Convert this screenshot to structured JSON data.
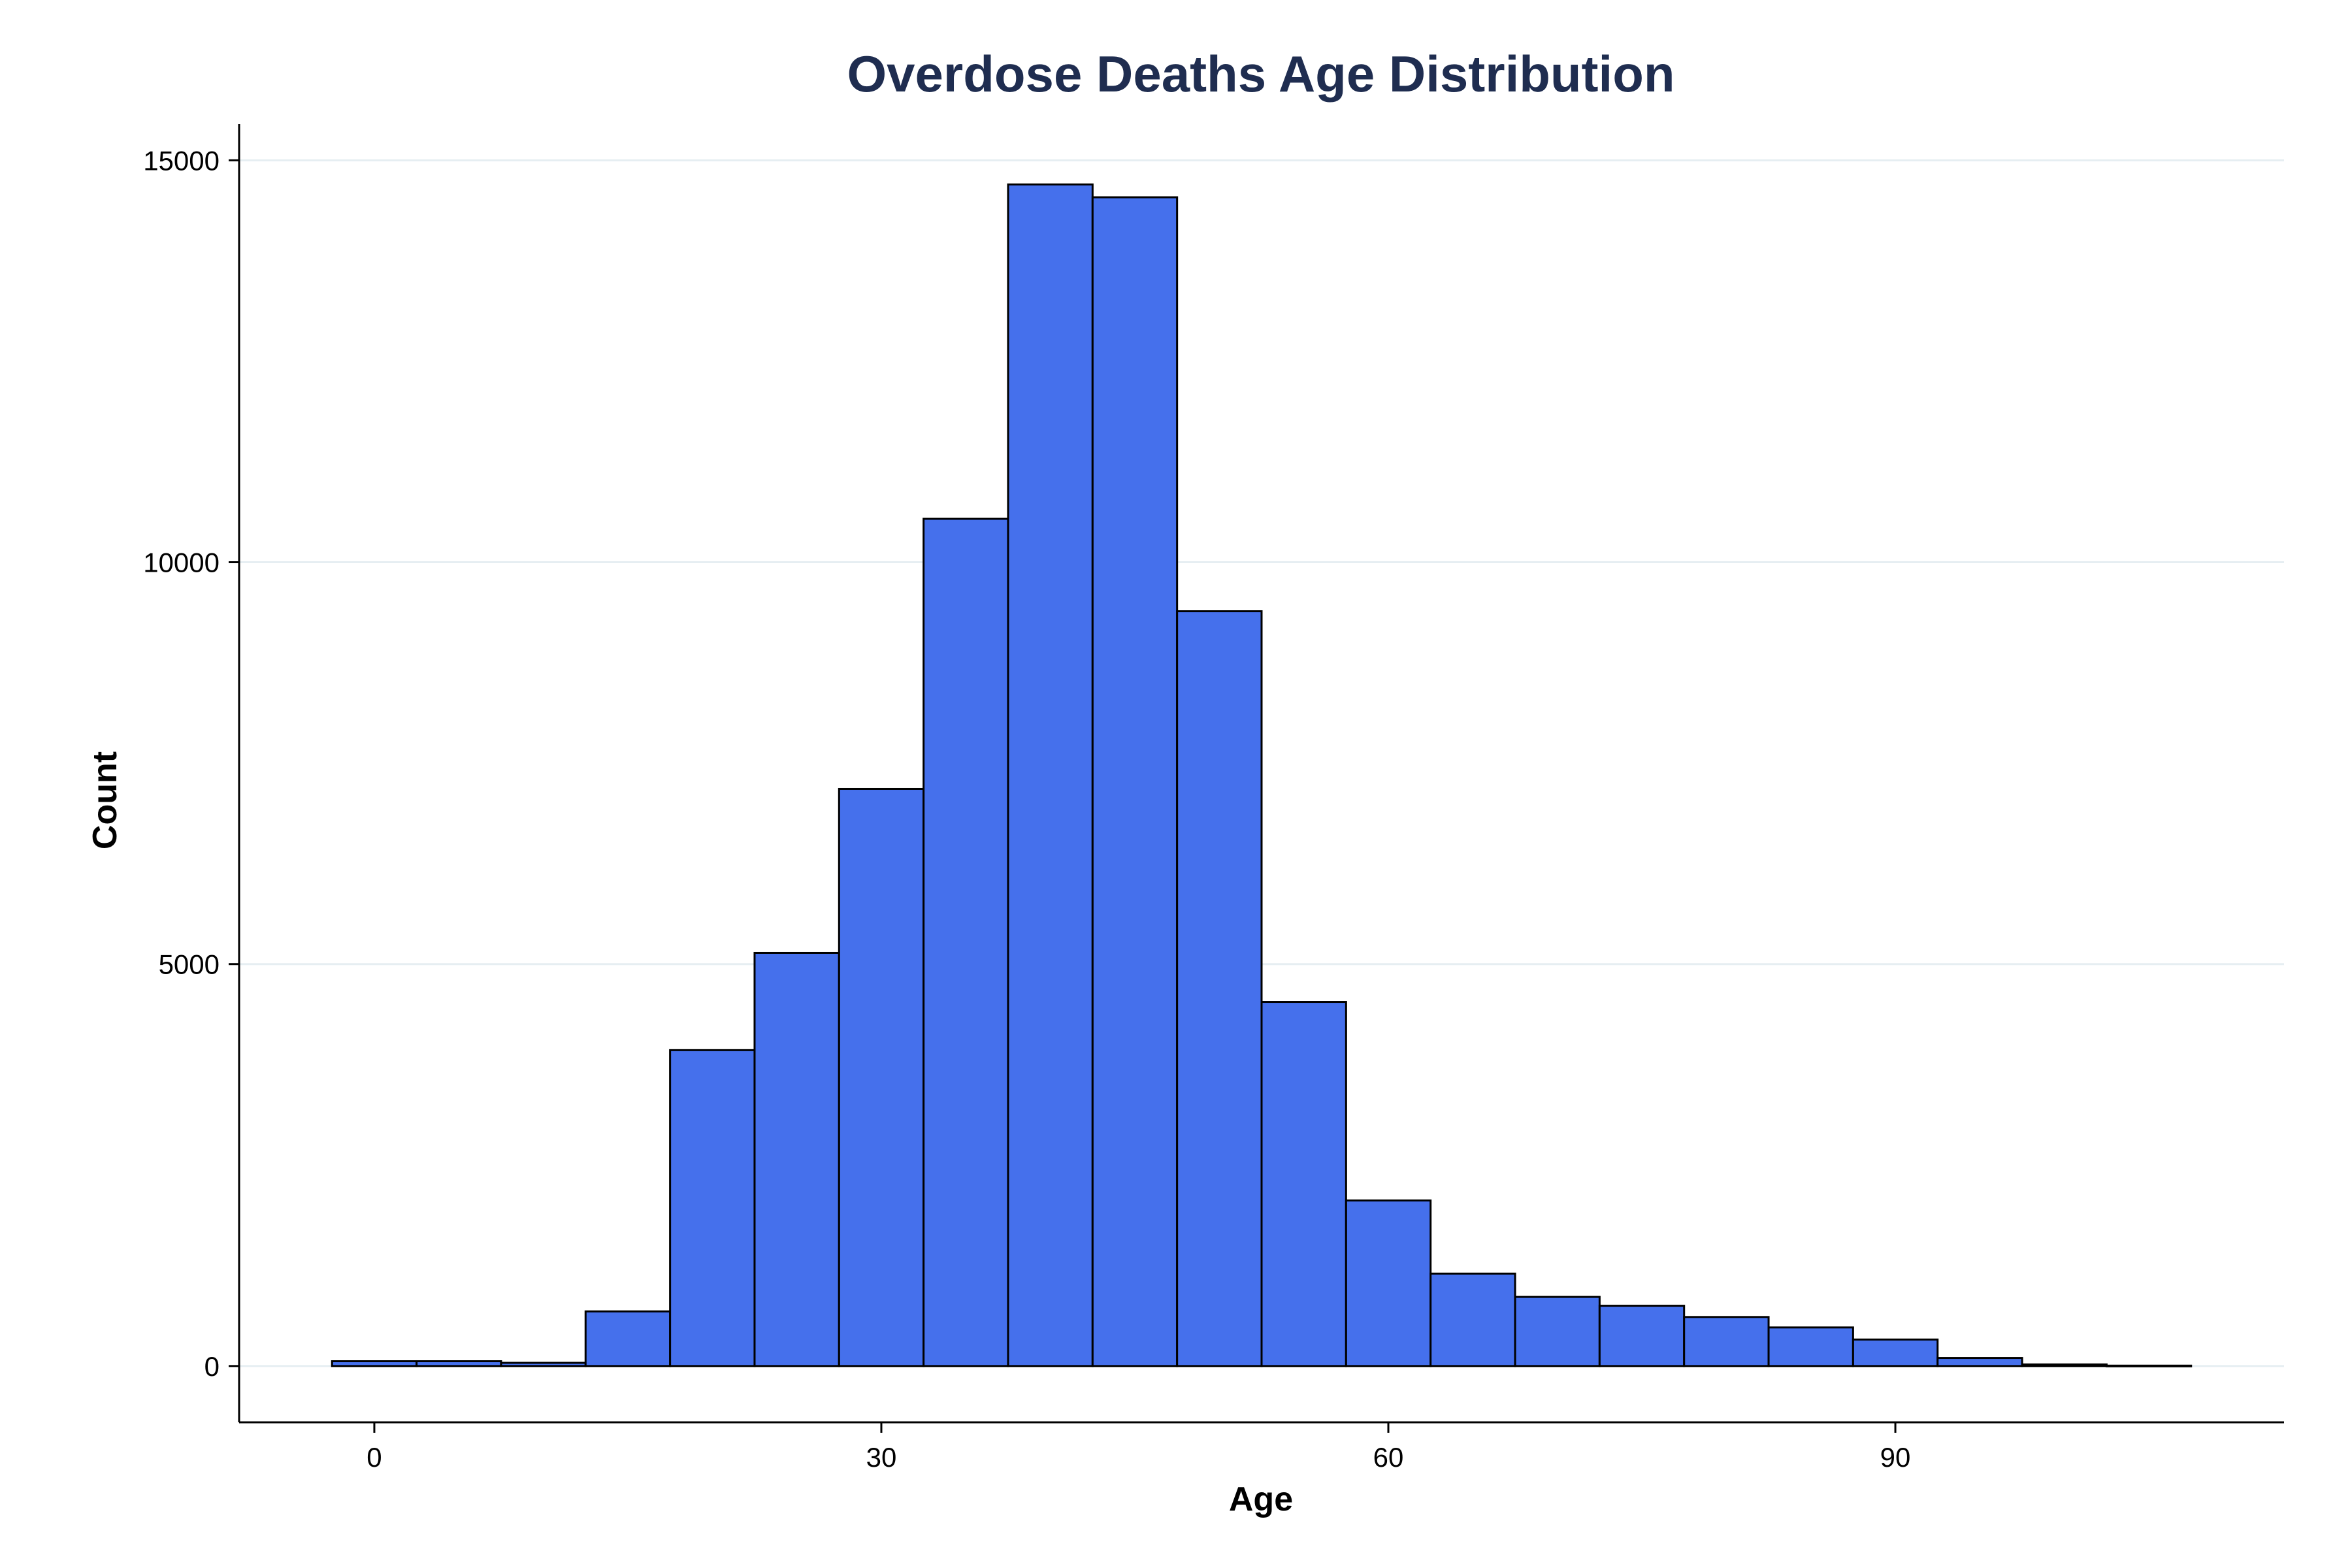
{
  "chart_data": {
    "type": "bar",
    "title": "Overdose Deaths Age Distribution",
    "xlabel": "Age",
    "ylabel": "Count",
    "bin_width": 5,
    "bins": [
      {
        "start": -2.5,
        "end": 2.5,
        "count": 60
      },
      {
        "start": 2.5,
        "end": 7.5,
        "count": 60
      },
      {
        "start": 7.5,
        "end": 12.5,
        "count": 40
      },
      {
        "start": 12.5,
        "end": 17.5,
        "count": 680
      },
      {
        "start": 17.5,
        "end": 22.5,
        "count": 3930
      },
      {
        "start": 22.5,
        "end": 27.5,
        "count": 5140
      },
      {
        "start": 27.5,
        "end": 32.5,
        "count": 7180
      },
      {
        "start": 32.5,
        "end": 37.5,
        "count": 10540
      },
      {
        "start": 37.5,
        "end": 42.5,
        "count": 14700
      },
      {
        "start": 42.5,
        "end": 47.5,
        "count": 14540
      },
      {
        "start": 47.5,
        "end": 52.5,
        "count": 9390
      },
      {
        "start": 52.5,
        "end": 57.5,
        "count": 4530
      },
      {
        "start": 57.5,
        "end": 62.5,
        "count": 2060
      },
      {
        "start": 62.5,
        "end": 67.5,
        "count": 1150
      },
      {
        "start": 67.5,
        "end": 72.5,
        "count": 860
      },
      {
        "start": 72.5,
        "end": 77.5,
        "count": 750
      },
      {
        "start": 77.5,
        "end": 82.5,
        "count": 610
      },
      {
        "start": 82.5,
        "end": 87.5,
        "count": 480
      },
      {
        "start": 87.5,
        "end": 92.5,
        "count": 330
      },
      {
        "start": 92.5,
        "end": 97.5,
        "count": 100
      },
      {
        "start": 97.5,
        "end": 102.5,
        "count": 20
      },
      {
        "start": 102.5,
        "end": 107.5,
        "count": 5
      }
    ],
    "xlim": [
      -8,
      113
    ],
    "ylim": [
      -700,
      15450
    ],
    "x_ticks": [
      0,
      30,
      60,
      90
    ],
    "y_ticks": [
      0,
      5000,
      10000,
      15000
    ],
    "grid": "horizontal",
    "legend": "none",
    "colors": {
      "bar_fill": "#4570EC",
      "bar_edge": "#000000",
      "title": "#1F2D50",
      "grid": "#E6EEF2",
      "axis": "#000000"
    }
  }
}
